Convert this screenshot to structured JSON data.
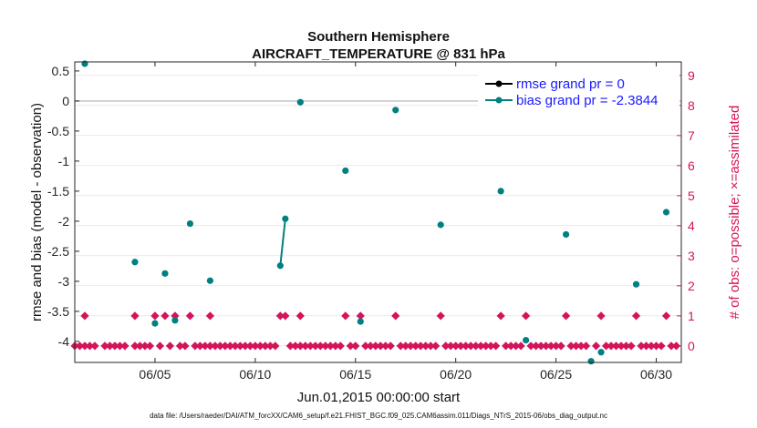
{
  "chart_data": {
    "type": "scatter",
    "title": "Southern Hemisphere",
    "subtitle": "AIRCRAFT_TEMPERATURE @ 831 hPa",
    "xlabel": "Jun.01,2015 00:00:00 start",
    "ylabel": "rmse and bias (model - observation)",
    "y2label": "# of obs: o=possible; ×=assimilated",
    "footnote": "data file: /Users/raeder/DAI/ATM_forcXX/CAM6_setup/f.e21.FHIST_BGC.f09_025.CAM6assim.011/Diags_NTrS_2015-06/obs_diag_output.nc",
    "xlim": [
      1,
      31.25
    ],
    "ylim": [
      -4.35,
      0.65
    ],
    "y2lim": [
      -0.55,
      9.45
    ],
    "xticks": [
      5,
      10,
      15,
      20,
      25,
      30
    ],
    "xtick_labels": [
      "06/05",
      "06/10",
      "06/15",
      "06/20",
      "06/25",
      "06/30"
    ],
    "yticks": [
      0.5,
      0,
      -0.5,
      -1,
      -1.5,
      -2,
      -2.5,
      -3,
      -3.5,
      -4
    ],
    "ytick_labels": [
      "0.5",
      "0",
      "-0.5",
      "-1",
      "-1.5",
      "-2",
      "-2.5",
      "-3",
      "-3.5",
      "-4"
    ],
    "y2ticks": [
      9,
      8,
      7,
      6,
      5,
      4,
      3,
      2,
      1,
      0
    ],
    "y2tick_labels": [
      "9",
      "8",
      "7",
      "6",
      "5",
      "4",
      "3",
      "2",
      "1",
      "0"
    ],
    "legend_position": "top-right",
    "grid": false,
    "colors": {
      "rmse": "#000000",
      "bias": "#008080",
      "obs": "#d4145a",
      "zero_line": "#c8c8c8",
      "grid_line": "#f0d3dc"
    },
    "series": [
      {
        "name": "rmse grand pr = 0",
        "x": [],
        "y": []
      },
      {
        "name": "bias grand pr = -2.3844",
        "x": [
          1.5,
          4.0,
          5.0,
          5.5,
          6.0,
          6.75,
          7.75,
          11.25,
          11.5,
          12.25,
          14.5,
          15.25,
          17.0,
          19.25,
          22.25,
          23.5,
          25.5,
          26.75,
          27.25,
          29.0,
          30.5
        ],
        "y": [
          0.62,
          -2.68,
          -3.7,
          -2.87,
          -3.65,
          -2.04,
          -2.99,
          -2.74,
          -1.96,
          -0.02,
          -1.16,
          -3.67,
          -0.15,
          -2.06,
          -1.5,
          -3.98,
          -2.22,
          -4.33,
          -4.18,
          -3.05,
          -1.85
        ],
        "connect_pairs": [
          [
            7,
            8
          ]
        ]
      },
      {
        "name": "obs possible",
        "y2_values": [
          0,
          1
        ],
        "marker": "diamond"
      }
    ],
    "obs_one_days": [
      1.5,
      4.0,
      5.0,
      5.5,
      6.0,
      6.75,
      7.75,
      11.25,
      11.5,
      12.25,
      14.5,
      15.25,
      17.0,
      19.25,
      22.25,
      23.5,
      25.5,
      27.25,
      29.0,
      30.5
    ],
    "obs_zero_days": [
      1.0,
      1.25,
      1.5,
      1.75,
      2.0,
      2.5,
      2.75,
      3.0,
      3.25,
      3.5,
      4.0,
      4.25,
      4.5,
      4.75,
      5.25,
      5.75,
      6.25,
      6.5,
      7.0,
      7.25,
      7.5,
      7.75,
      8.0,
      8.25,
      8.5,
      8.75,
      9.0,
      9.25,
      9.5,
      9.75,
      10.0,
      10.25,
      10.5,
      10.75,
      11.0,
      11.75,
      12.0,
      12.25,
      12.5,
      12.75,
      13.0,
      13.25,
      13.5,
      13.75,
      14.0,
      14.25,
      14.75,
      15.0,
      15.5,
      15.75,
      16.0,
      16.25,
      16.5,
      16.75,
      17.25,
      17.5,
      17.75,
      18.0,
      18.25,
      18.5,
      18.75,
      19.0,
      19.5,
      19.75,
      20.0,
      20.25,
      20.5,
      20.75,
      21.0,
      21.25,
      21.5,
      21.75,
      22.0,
      22.5,
      22.75,
      23.0,
      23.25,
      23.75,
      24.0,
      24.25,
      24.5,
      24.75,
      25.0,
      25.25,
      25.75,
      26.0,
      26.25,
      26.5,
      27.0,
      27.5,
      27.75,
      28.0,
      28.25,
      28.5,
      28.75,
      29.25,
      29.5,
      29.75,
      30.0,
      30.25,
      30.75,
      31.0
    ]
  }
}
